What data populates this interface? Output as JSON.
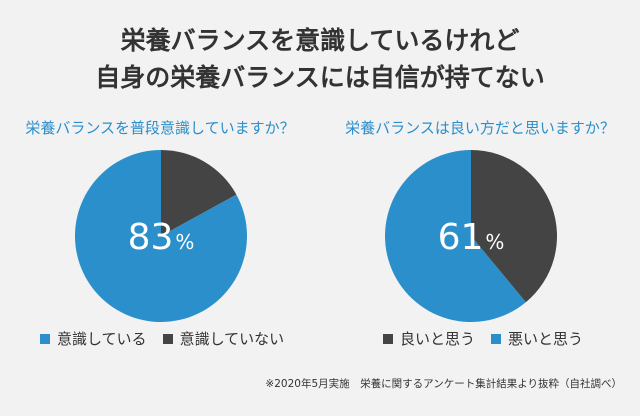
{
  "title": {
    "line1": "栄養バランスを意識しているけれど",
    "line2": "自身の栄養バランスには自信が持てない"
  },
  "colors": {
    "blue": "#2b8fcb",
    "dark": "#444444",
    "title": "#333333"
  },
  "chart_data": [
    {
      "type": "pie",
      "title": "栄養バランスを普段意識していますか？",
      "center_label": "83",
      "center_unit": "%",
      "slices": [
        {
          "label": "意識している",
          "value": 83,
          "color": "#2b8fcb"
        },
        {
          "label": "意識していない",
          "value": 17,
          "color": "#444444"
        }
      ],
      "legend_position": "bottom"
    },
    {
      "type": "pie",
      "title": "栄養バランスは良い方だと思いますか？",
      "center_label": "61",
      "center_unit": "%",
      "slices": [
        {
          "label": "良いと思う",
          "value": 39,
          "color": "#444444"
        },
        {
          "label": "悪いと思う",
          "value": 61,
          "color": "#2b8fcb"
        }
      ],
      "legend_position": "bottom"
    }
  ],
  "footnote": "※2020年5月実施　栄養に関するアンケート集計結果より抜粋（自社調べ）"
}
